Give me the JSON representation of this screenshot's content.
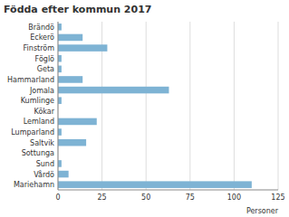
{
  "chart_data": {
    "type": "bar",
    "orientation": "horizontal",
    "title": "Födda efter kommun 2017",
    "categories": [
      "Brändö",
      "Eckerö",
      "Finström",
      "Föglö",
      "Geta",
      "Hammarland",
      "Jomala",
      "Kumlinge",
      "Kökar",
      "Lemland",
      "Lumparland",
      "Saltvik",
      "Sottunga",
      "Sund",
      "Vårdö",
      "Mariehamn"
    ],
    "values": [
      2,
      14,
      28,
      2,
      2,
      14,
      63,
      2,
      0,
      22,
      2,
      16,
      0,
      2,
      6,
      110
    ],
    "color": "#7eb3d4",
    "xlabel": "Personer",
    "xlim": [
      0,
      125
    ],
    "xticks": [
      0,
      25,
      50,
      75,
      100,
      125
    ],
    "grid": true
  }
}
